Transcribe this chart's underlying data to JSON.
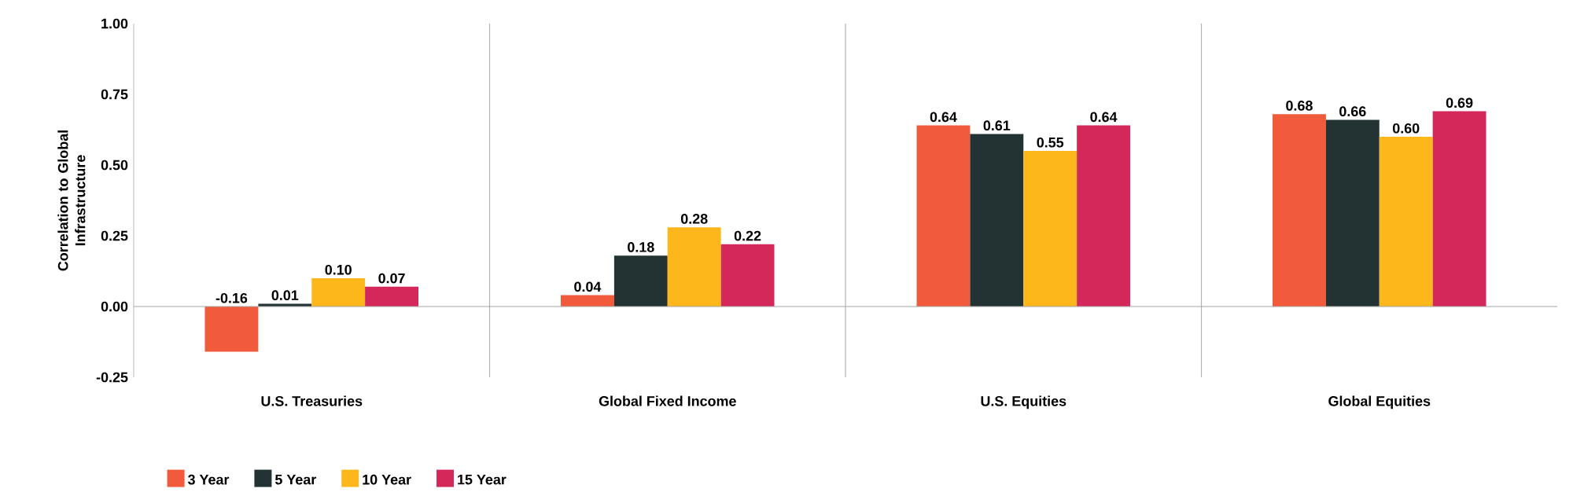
{
  "chart_data": {
    "type": "bar",
    "ylabel": "Correlation to Global Infrastructure",
    "categories": [
      "U.S. Treasuries",
      "Global Fixed Income",
      "U.S. Equities",
      "Global Equities"
    ],
    "series": [
      {
        "name": "3 Year",
        "color": "#f15a3b",
        "values": [
          -0.16,
          0.04,
          0.64,
          0.68
        ],
        "value_labels": [
          "-0.16",
          "0.04",
          "0.64",
          "0.68"
        ]
      },
      {
        "name": "5 Year",
        "color": "#233232",
        "values": [
          0.01,
          0.18,
          0.61,
          0.66
        ],
        "value_labels": [
          "0.01",
          "0.18",
          "0.61",
          "0.66"
        ]
      },
      {
        "name": "10 Year",
        "color": "#fdb71b",
        "values": [
          0.1,
          0.28,
          0.55,
          0.6
        ],
        "value_labels": [
          "0.10",
          "0.28",
          "0.55",
          "0.60"
        ]
      },
      {
        "name": "15 Year",
        "color": "#d4275a",
        "values": [
          0.07,
          0.22,
          0.64,
          0.69
        ],
        "value_labels": [
          "0.07",
          "0.22",
          "0.64",
          "0.69"
        ]
      }
    ],
    "ylim": [
      -0.25,
      1.0
    ],
    "yticks": [
      {
        "value": -0.25,
        "label": "-0.25"
      },
      {
        "value": 0,
        "label": "0.00"
      },
      {
        "value": 0.25,
        "label": "0.25"
      },
      {
        "value": 0.5,
        "label": "0.50"
      },
      {
        "value": 0.75,
        "label": "0.75"
      },
      {
        "value": 1.0,
        "label": "1.00"
      }
    ],
    "ref_lines": [
      {
        "axis": "y",
        "value": 0
      }
    ],
    "grid": "x",
    "legend": "bottom left"
  }
}
